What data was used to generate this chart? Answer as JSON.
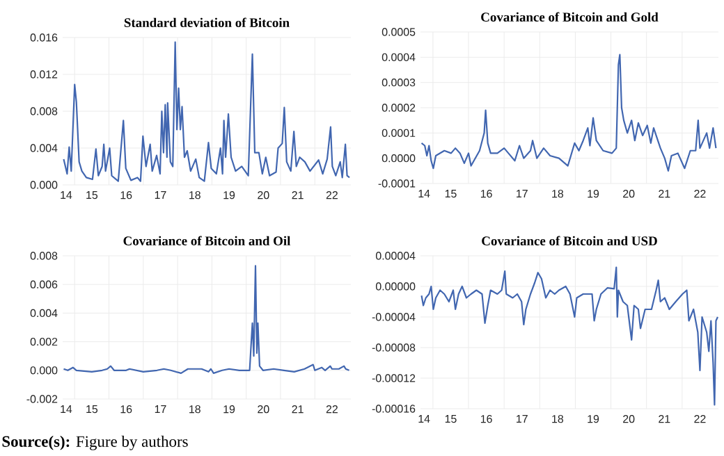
{
  "chart_data": [
    {
      "type": "line",
      "title": "Standard deviation of Bitcoin",
      "color": "#4166b0",
      "grid": true,
      "x": [
        14.18,
        14.28,
        14.34,
        14.4,
        14.5,
        14.55,
        14.63,
        14.71,
        14.84,
        15.02,
        15.12,
        15.19,
        15.3,
        15.35,
        15.4,
        15.52,
        15.58,
        15.77,
        15.92,
        15.99,
        16.14,
        16.33,
        16.42,
        16.49,
        16.58,
        16.7,
        16.76,
        16.89,
        16.99,
        17.04,
        17.09,
        17.14,
        17.19,
        17.21,
        17.29,
        17.36,
        17.43,
        17.48,
        17.53,
        17.58,
        17.63,
        17.7,
        17.78,
        17.88,
        18.03,
        18.13,
        18.28,
        18.4,
        18.48,
        18.63,
        18.75,
        18.81,
        18.85,
        18.9,
        18.98,
        19.06,
        19.19,
        19.37,
        19.56,
        19.68,
        19.75,
        19.87,
        19.97,
        20.07,
        20.18,
        20.37,
        20.43,
        20.55,
        20.61,
        20.68,
        20.8,
        20.89,
        20.96,
        21.06,
        21.21,
        21.36,
        21.61,
        21.73,
        21.86,
        21.96,
        22.01,
        22.11,
        22.24,
        22.3,
        22.39,
        22.44,
        22.51
      ],
      "values": [
        0.0028,
        0.0012,
        0.0041,
        0.0015,
        0.0109,
        0.009,
        0.0025,
        0.0015,
        0.0008,
        0.0006,
        0.0039,
        0.001,
        0.002,
        0.0044,
        0.0015,
        0.004,
        0.001,
        0.0004,
        0.007,
        0.0018,
        0.0005,
        0.0008,
        0.0004,
        0.0053,
        0.002,
        0.0044,
        0.0015,
        0.0032,
        0.0012,
        0.008,
        0.0035,
        0.0087,
        0.003,
        0.0089,
        0.0025,
        0.002,
        0.0155,
        0.006,
        0.0105,
        0.006,
        0.0085,
        0.003,
        0.0037,
        0.0015,
        0.0028,
        0.0008,
        0.0004,
        0.0046,
        0.0018,
        0.0012,
        0.004,
        0.0012,
        0.007,
        0.003,
        0.0077,
        0.003,
        0.0015,
        0.002,
        0.001,
        0.0142,
        0.0035,
        0.0035,
        0.0012,
        0.003,
        0.001,
        0.0014,
        0.004,
        0.0045,
        0.0084,
        0.0025,
        0.0015,
        0.0058,
        0.002,
        0.003,
        0.0025,
        0.0015,
        0.0027,
        0.0012,
        0.0028,
        0.0063,
        0.002,
        0.001,
        0.0025,
        0.0008,
        0.0044,
        0.001,
        0.0008
      ],
      "xlim": [
        14.15,
        22.55
      ],
      "xticks": [
        {
          "value": 14.25,
          "label": "14"
        },
        15,
        16,
        17,
        18,
        19,
        20,
        21,
        22,
        {
          "value": 14.5,
          "label": null
        },
        {
          "value": 15.5,
          "label": null
        },
        {
          "value": 16.5,
          "label": null
        },
        {
          "value": 17.5,
          "label": null
        },
        {
          "value": 18.5,
          "label": null
        },
        {
          "value": 19.5,
          "label": null
        },
        {
          "value": 20.5,
          "label": null
        },
        {
          "value": 21.5,
          "label": null
        }
      ],
      "ylim": [
        0,
        0.016
      ],
      "yticks": [
        {
          "value": 0,
          "label": "0.000"
        },
        0.004,
        0.008,
        0.012,
        0.016
      ]
    },
    {
      "type": "line",
      "title": "Covariance of Bitcoin and Gold",
      "color": "#4166b0",
      "grid": true,
      "x": [
        14.18,
        14.27,
        14.33,
        14.39,
        14.45,
        14.51,
        14.58,
        14.7,
        14.82,
        15.01,
        15.13,
        15.26,
        15.38,
        15.5,
        15.57,
        15.69,
        15.81,
        15.94,
        15.98,
        16.04,
        16.12,
        16.31,
        16.5,
        16.62,
        16.8,
        16.93,
        17.05,
        17.24,
        17.3,
        17.42,
        17.61,
        17.79,
        18.04,
        18.29,
        18.48,
        18.6,
        18.72,
        18.85,
        18.91,
        19.0,
        19.09,
        19.28,
        19.53,
        19.65,
        19.71,
        19.75,
        19.8,
        19.86,
        19.96,
        20.08,
        20.17,
        20.27,
        20.39,
        20.52,
        20.62,
        20.7,
        20.89,
        21.01,
        21.11,
        21.2,
        21.38,
        21.57,
        21.73,
        21.88,
        21.95,
        22.0,
        22.19,
        22.27,
        22.37,
        22.45
      ],
      "values": [
        6e-05,
        5e-05,
        1e-05,
        5e-05,
        -1e-05,
        -4e-05,
        1e-05,
        2e-05,
        3e-05,
        2e-05,
        4e-05,
        2e-05,
        -2e-05,
        2e-05,
        -3e-05,
        0.0,
        3e-05,
        0.0001,
        0.00019,
        6e-05,
        2e-05,
        2e-05,
        4e-05,
        2e-05,
        -1e-05,
        5e-05,
        0.0,
        3e-05,
        7e-05,
        0.0,
        4e-05,
        1e-05,
        0.0,
        -3e-05,
        6e-05,
        3e-05,
        7e-05,
        0.00012,
        5e-05,
        0.00016,
        7e-05,
        3e-05,
        2e-05,
        4e-05,
        0.00037,
        0.00041,
        0.0002,
        0.00015,
        0.0001,
        0.00015,
        7e-05,
        0.00014,
        9e-05,
        0.00013,
        6e-05,
        0.00012,
        4e-05,
        0.0,
        -5e-05,
        1e-05,
        2e-05,
        -4e-05,
        3e-05,
        3e-05,
        0.00015,
        4e-05,
        0.0001,
        4e-05,
        0.00012,
        4e-05
      ],
      "xlim": [
        14.15,
        22.52
      ],
      "xticks": [
        {
          "value": 14.25,
          "label": "14"
        },
        15,
        16,
        17,
        18,
        19,
        20,
        21,
        22,
        {
          "value": 14.5,
          "label": null
        },
        {
          "value": 15.5,
          "label": null
        },
        {
          "value": 16.5,
          "label": null
        },
        {
          "value": 17.5,
          "label": null
        },
        {
          "value": 18.5,
          "label": null
        },
        {
          "value": 19.5,
          "label": null
        },
        {
          "value": 20.5,
          "label": null
        },
        {
          "value": 21.5,
          "label": null
        }
      ],
      "ylim": [
        -0.0001,
        0.0005
      ],
      "yticks": [
        -0.0001,
        {
          "value": 0,
          "label": "0.0000"
        },
        0.0001,
        0.0002,
        0.0003,
        0.0004,
        0.0005
      ]
    },
    {
      "type": "line",
      "title": "Covariance of Bitcoin and Oil",
      "color": "#4166b0",
      "grid": true,
      "x": [
        14.18,
        14.3,
        14.45,
        14.55,
        15.0,
        15.3,
        15.45,
        15.55,
        15.65,
        16.0,
        16.1,
        16.5,
        16.9,
        17.1,
        17.3,
        17.6,
        17.8,
        18.2,
        18.4,
        18.47,
        18.55,
        18.8,
        19.0,
        19.3,
        19.6,
        19.65,
        19.68,
        19.72,
        19.77,
        19.81,
        19.84,
        19.89,
        19.99,
        20.3,
        20.6,
        20.9,
        21.2,
        21.45,
        21.5,
        21.7,
        21.8,
        21.95,
        22.0,
        22.2,
        22.35,
        22.4,
        22.5
      ],
      "values": [
        0.0001,
        0.0,
        0.0002,
        0.0,
        -0.0001,
        0.0,
        0.0001,
        0.0003,
        0.0,
        0.0,
        0.0001,
        -0.0001,
        0.0,
        0.0001,
        0.0,
        -0.0002,
        0.0001,
        0.0001,
        -0.0001,
        0.0001,
        -0.0002,
        0.0,
        0.0001,
        0.0,
        0.0,
        0.0021,
        0.0033,
        0.001,
        0.0073,
        0.0012,
        0.0033,
        0.0003,
        0.0,
        0.0001,
        0.0,
        -0.0001,
        0.0001,
        0.0004,
        0.0,
        0.0002,
        0.0,
        0.0003,
        0.0001,
        0.0001,
        0.0003,
        0.0001,
        0.0
      ],
      "xlim": [
        14.15,
        22.55
      ],
      "xticks": [
        {
          "value": 14.25,
          "label": "14"
        },
        15,
        16,
        17,
        18,
        19,
        20,
        21,
        22,
        {
          "value": 14.5,
          "label": null
        },
        {
          "value": 15.5,
          "label": null
        },
        {
          "value": 16.5,
          "label": null
        },
        {
          "value": 17.5,
          "label": null
        },
        {
          "value": 18.5,
          "label": null
        },
        {
          "value": 19.5,
          "label": null
        },
        {
          "value": 20.5,
          "label": null
        },
        {
          "value": 21.5,
          "label": null
        }
      ],
      "ylim": [
        -0.002,
        0.008
      ],
      "yticks": [
        -0.002,
        {
          "value": 0,
          "label": "0.000"
        },
        0.002,
        0.004,
        0.006,
        0.008
      ],
      "annotations": [
        "**Source(s):** Figure by authors"
      ]
    },
    {
      "type": "line",
      "title": "Covariance of Bitcoin and USD",
      "color": "#4166b0",
      "grid": true,
      "x": [
        14.18,
        14.23,
        14.3,
        14.39,
        14.45,
        14.51,
        14.58,
        14.7,
        14.82,
        14.95,
        15.07,
        15.13,
        15.22,
        15.32,
        15.44,
        15.57,
        15.72,
        15.88,
        15.96,
        16.04,
        16.12,
        16.31,
        16.43,
        16.52,
        16.56,
        16.74,
        16.87,
        16.99,
        17.05,
        17.11,
        17.24,
        17.36,
        17.45,
        17.55,
        17.67,
        17.79,
        17.92,
        18.04,
        18.23,
        18.35,
        18.48,
        18.54,
        18.72,
        18.97,
        19.03,
        19.09,
        19.22,
        19.4,
        19.59,
        19.65,
        19.68,
        19.71,
        19.84,
        19.96,
        20.08,
        20.15,
        20.27,
        20.33,
        20.46,
        20.64,
        20.77,
        20.83,
        20.89,
        21.01,
        21.14,
        21.32,
        21.51,
        21.63,
        21.69,
        21.82,
        21.94,
        22.0,
        22.06,
        22.19,
        22.25,
        22.31,
        22.37,
        22.41,
        22.45,
        22.5
      ],
      "values": [
        -1.2e-05,
        -2.5e-05,
        -1.5e-05,
        -1e-05,
        0.0,
        -3e-05,
        -1.5e-05,
        -5e-06,
        -1e-05,
        -2e-05,
        -5e-06,
        -3e-05,
        -1e-05,
        0.0,
        -1.5e-05,
        -1e-05,
        -5e-06,
        -1e-05,
        -4.8e-05,
        -2.5e-05,
        -5e-06,
        -1e-05,
        -5e-06,
        2e-05,
        -1e-05,
        -1.5e-05,
        -1e-05,
        -2e-05,
        -5e-05,
        -3e-05,
        -1e-05,
        5e-06,
        1.8e-05,
        1e-05,
        -1.5e-05,
        -5e-06,
        -1e-05,
        -5e-06,
        0.0,
        -1e-05,
        -4e-05,
        -1.5e-05,
        -1e-05,
        -1e-05,
        -4.5e-05,
        -3e-05,
        -1e-05,
        -2e-06,
        -3e-06,
        2.5e-05,
        -4e-05,
        -5e-06,
        -2e-05,
        -2.5e-05,
        -7e-05,
        -2.5e-05,
        -3e-05,
        -5.5e-05,
        -3e-05,
        -3e-05,
        -5e-06,
        8e-06,
        -2e-05,
        -1.5e-05,
        -3e-05,
        -2e-05,
        -1e-05,
        -5e-06,
        -4.5e-05,
        -3e-05,
        -6e-05,
        -0.00011,
        -4e-05,
        -6e-05,
        -8.5e-05,
        -4.5e-05,
        -0.0001,
        -0.000155,
        -4.5e-05,
        -4e-05
      ],
      "xlim": [
        14.15,
        22.52
      ],
      "xticks": [
        {
          "value": 14.25,
          "label": "14"
        },
        15,
        16,
        17,
        18,
        19,
        20,
        21,
        22,
        {
          "value": 14.5,
          "label": null
        },
        {
          "value": 15.5,
          "label": null
        },
        {
          "value": 16.5,
          "label": null
        },
        {
          "value": 17.5,
          "label": null
        },
        {
          "value": 18.5,
          "label": null
        },
        {
          "value": 19.5,
          "label": null
        },
        {
          "value": 20.5,
          "label": null
        },
        {
          "value": 21.5,
          "label": null
        }
      ],
      "ylim": [
        -0.00016,
        4e-05
      ],
      "yticks": [
        {
          "value": -0.00016,
          "label": "-0.00016"
        },
        {
          "value": -0.00012,
          "label": "-0.00012"
        },
        {
          "value": -8e-05,
          "label": "-0.00008"
        },
        {
          "value": -4e-05,
          "label": "-0.00004"
        },
        {
          "value": 0,
          "label": "0.00000"
        },
        {
          "value": 4e-05,
          "label": "0.00004"
        }
      ]
    }
  ]
}
